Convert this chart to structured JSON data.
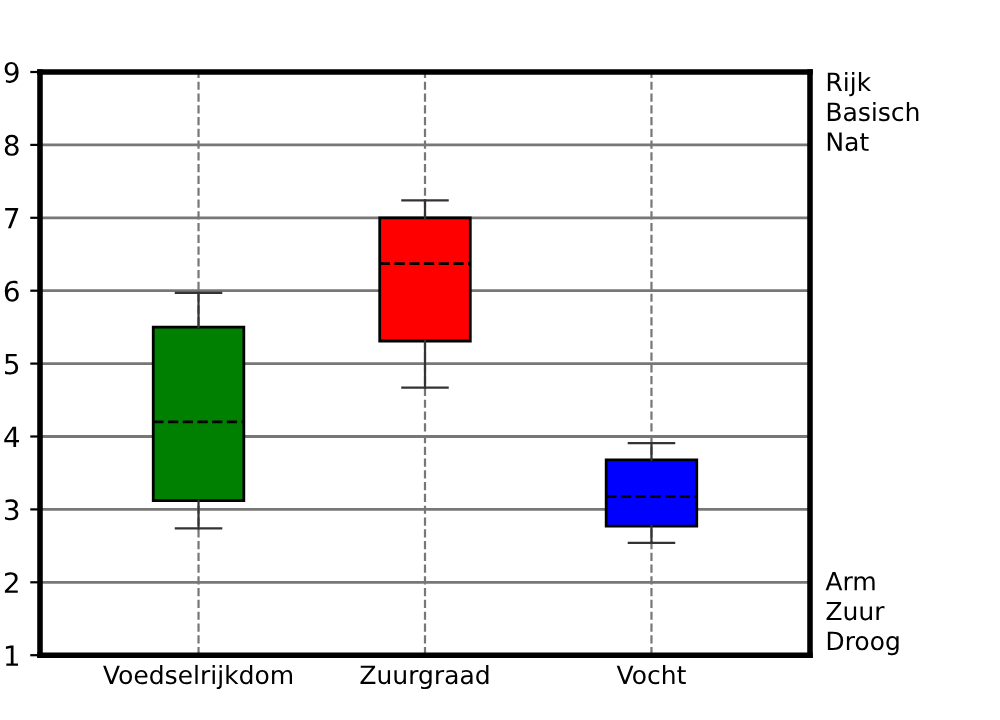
{
  "chart_data": {
    "type": "box",
    "categories": [
      "Voedselrijkdom",
      "Zuurgraad",
      "Vocht"
    ],
    "boxes": [
      {
        "low": 2.74,
        "q1": 3.12,
        "median": 4.2,
        "q3": 5.5,
        "high": 5.97
      },
      {
        "low": 4.67,
        "q1": 5.31,
        "median": 6.37,
        "q3": 7.0,
        "high": 7.24
      },
      {
        "low": 2.54,
        "q1": 2.77,
        "median": 3.18,
        "q3": 3.68,
        "high": 3.91
      }
    ],
    "colors": [
      "#008000",
      "#ff0000",
      "#0000ff"
    ],
    "ylim": [
      1,
      9
    ],
    "yticks": [
      1,
      2,
      3,
      4,
      5,
      6,
      7,
      8,
      9
    ],
    "grid": true,
    "line_style": "dashed",
    "annotations": [
      "Rijk\nBasisch\nNat",
      "Arm\nZuur\nDroog"
    ]
  }
}
